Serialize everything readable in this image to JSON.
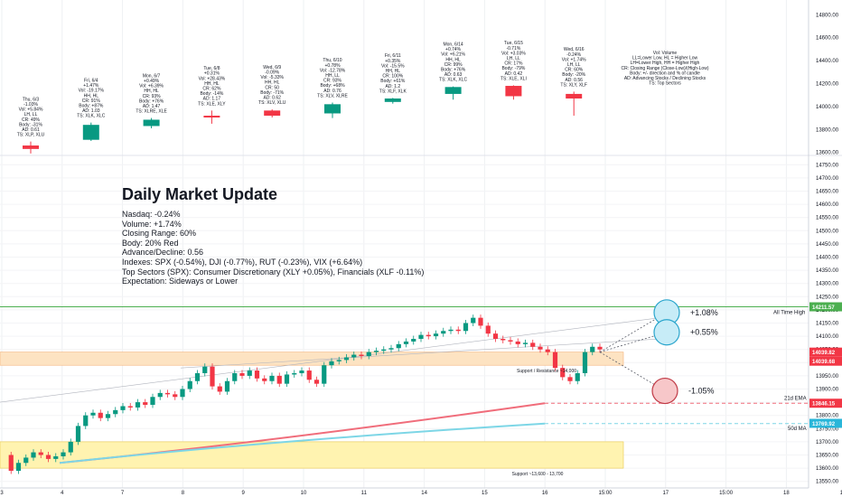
{
  "summary": {
    "title": "Daily Market Update",
    "lines": [
      "Nasdaq: -0.24%",
      "Volume: +1.74%",
      "Closing Range: 60%",
      "Body: 20% Red",
      "Advance/Decline: 0.56",
      "Indexes: SPX (-0.54%), DJI (-0.77%), RUT (-0.23%), VIX (+6.64%)",
      "Top Sectors (SPX): Consumer Discretionary (XLY +0.05%), Financials (XLF -0.11%)",
      "Expectation: Sideways or Lower"
    ]
  },
  "legend_lines": [
    "Vol: Volume",
    "LL=Lower Low, HL = Higher Low",
    "LH=Lower High, HH = Higher High",
    "CR: Closing Range (Close-Low)/(High-Low)",
    "Body: +/- direction and % of candle",
    "AD: Advancing Stocks / Declining Stocks",
    "TS: Top Sectors"
  ],
  "labels": {
    "all_time_high": "All Time High",
    "sma21": "21d EMA",
    "sma50": "50d MA",
    "support_resistance": "Support / Resistance ~14,000",
    "support_zone": "Support ~13,600 - 13,700",
    "scenario_up_big": "+1.08%",
    "scenario_up_small": "+0.55%",
    "scenario_down": "-1.05%"
  },
  "colors": {
    "up": "#089981",
    "down": "#f23645",
    "ath_line": "#4caf50",
    "sma21": "#f06d7b",
    "sma50": "#7dd6e6",
    "zone_orange": "#fde3c2",
    "zone_yellow": "#fff3b0",
    "circle_blue": "#c7ecf7",
    "circle_red": "#f7c7c9"
  },
  "chart_data": [
    {
      "type": "candlestick",
      "title": "Daily candle annotations",
      "y_axis_ticks": [
        13600,
        13800,
        14000,
        14200,
        14400,
        14600,
        14800
      ],
      "ylim": [
        13550,
        14850
      ],
      "days": [
        {
          "label": "Thu, 6/3",
          "open": 13660,
          "high": 13695,
          "low": 13590,
          "close": 13630,
          "annotation": [
            "Thu, 6/3",
            "-1.03%",
            "Vol: +5.84%",
            "LH, LL",
            "CR: 49%",
            "Body: -31%",
            "AD: 0.61",
            "TS: XLP, XLU"
          ]
        },
        {
          "label": "Fri, 6/4",
          "open": 13710,
          "high": 13860,
          "low": 13700,
          "close": 13840,
          "annotation": [
            "Fri, 6/4",
            "+1.47%",
            "Vol: -19.17%",
            "HH, HL",
            "CR: 91%",
            "Body: +87%",
            "AD: 1.03",
            "TS: XLK, XLC"
          ]
        },
        {
          "label": "Mon, 6/7",
          "open": 13830,
          "high": 13900,
          "low": 13810,
          "close": 13885,
          "annotation": [
            "Mon, 6/7",
            "+0.49%",
            "Vol: +6.39%",
            "HH, HL",
            "CR: 93%",
            "Body: +76%",
            "AD: 1.47",
            "TS: XLRE, XLE"
          ]
        },
        {
          "label": "Tue, 6/8",
          "open": 13920,
          "high": 13965,
          "low": 13850,
          "close": 13910,
          "annotation": [
            "Tue, 6/8",
            "+0.31%",
            "Vol: +28.43%",
            "HH, HL",
            "CR: 62%",
            "Body: -14%",
            "AD: 1.17",
            "TS: XLE, XLY"
          ]
        },
        {
          "label": "Wed, 6/9",
          "open": 13965,
          "high": 13975,
          "low": 13905,
          "close": 13920,
          "annotation": [
            "Wed, 6/9",
            "-0.09%",
            "Vol: -5.33%",
            "HH, HL",
            "CR: 50",
            "Body: -71%",
            "AD: 0.62",
            "TS: XLV, XLU"
          ]
        },
        {
          "label": "Thu, 6/10",
          "open": 13940,
          "high": 14035,
          "low": 13900,
          "close": 14020,
          "annotation": [
            "Thu, 6/10",
            "+0.78%",
            "Vol: -12.78%",
            "HH, LL",
            "CR: 93%",
            "Body: +68%",
            "AD: 0.76",
            "TS: XLV, XLRE"
          ]
        },
        {
          "label": "Fri, 6/11",
          "open": 14040,
          "high": 14075,
          "low": 14025,
          "close": 14070,
          "annotation": [
            "Fri, 6/11",
            "+0.35%",
            "Vol: -15.5%",
            "HH, HL",
            "CR: 100%",
            "Body: +61%",
            "AD: 1.2",
            "TS: XLF, XLK"
          ]
        },
        {
          "label": "Mon, 6/14",
          "open": 14110,
          "high": 14175,
          "low": 14060,
          "close": 14170,
          "annotation": [
            "Mon, 6/14",
            "+0.74%",
            "Vol: +6.21%",
            "HH, HL",
            "CR: 99%",
            "Body: +76%",
            "AD: 0.63",
            "TS: XLK, XLC"
          ]
        },
        {
          "label": "Tue, 6/15",
          "open": 14180,
          "high": 14185,
          "low": 14060,
          "close": 14090,
          "annotation": [
            "Tue, 6/15",
            "-0.71%",
            "Vol: +3.03%",
            "LH, LL",
            "CR: 17%",
            "Body: -79%",
            "AD: 0.42",
            "TS: XLE, XLI"
          ]
        },
        {
          "label": "Wed, 6/16",
          "open": 14110,
          "high": 14130,
          "low": 13920,
          "close": 14070,
          "annotation": [
            "Wed, 6/16",
            "-0.24%",
            "Vol: +1.74%",
            "LH, LL",
            "CR: 60%",
            "Body: -20%",
            "AD: 0.56",
            "TS: XLY, XLF"
          ]
        }
      ]
    },
    {
      "type": "line",
      "title": "Intraday Nasdaq",
      "x_ticks": [
        "3",
        "4",
        "7",
        "8",
        "9",
        "10",
        "11",
        "14",
        "15",
        "16",
        "15:00",
        "17",
        "15:00",
        "18",
        "15:00",
        "21"
      ],
      "y_axis_ticks": [
        13550,
        13600,
        13650,
        13700,
        13750,
        13800,
        13850,
        13900,
        13950,
        14000,
        14050,
        14100,
        14150,
        14200,
        14250,
        14300,
        14350,
        14400,
        14450,
        14500,
        14550,
        14600,
        14650,
        14700,
        14750
      ],
      "ylim": [
        13525,
        14775
      ],
      "price_levels": {
        "all_time_high": 14211.57,
        "last_close": 14039.82,
        "prior": 14039.68,
        "sma21": 13846.15,
        "sma50": 13769.92
      },
      "scenarios": [
        {
          "label": "+1.08%",
          "target": 14190
        },
        {
          "label": "+0.55%",
          "target": 14115
        },
        {
          "label": "-1.05%",
          "target": 13893
        }
      ],
      "series": [
        {
          "values": [
            13650,
            13590,
            13620,
            13640,
            13660,
            13650,
            13635,
            13645,
            13660,
            13700,
            13760,
            13800,
            13810,
            13790,
            13805,
            13820,
            13835,
            13830,
            13850,
            13840,
            13870,
            13885,
            13880,
            13870,
            13900,
            13930,
            13960,
            13985,
            13910,
            13890,
            13930,
            13960,
            13950,
            13970,
            13940,
            13930,
            13950,
            13920,
            13955,
            13960,
            13970,
            13935,
            13920,
            13990,
            14005,
            14010,
            14020,
            14030,
            14025,
            14040,
            14045,
            14050,
            14055,
            14070,
            14080,
            14090,
            14105,
            14100,
            14110,
            14120,
            14125,
            14120,
            14150,
            14170,
            14140,
            14110,
            14090,
            14085,
            14080,
            14070,
            14075,
            14060,
            14050,
            14040,
            13980,
            13945,
            13930,
            13960,
            14040,
            14060,
            14050
          ]
        }
      ]
    }
  ]
}
